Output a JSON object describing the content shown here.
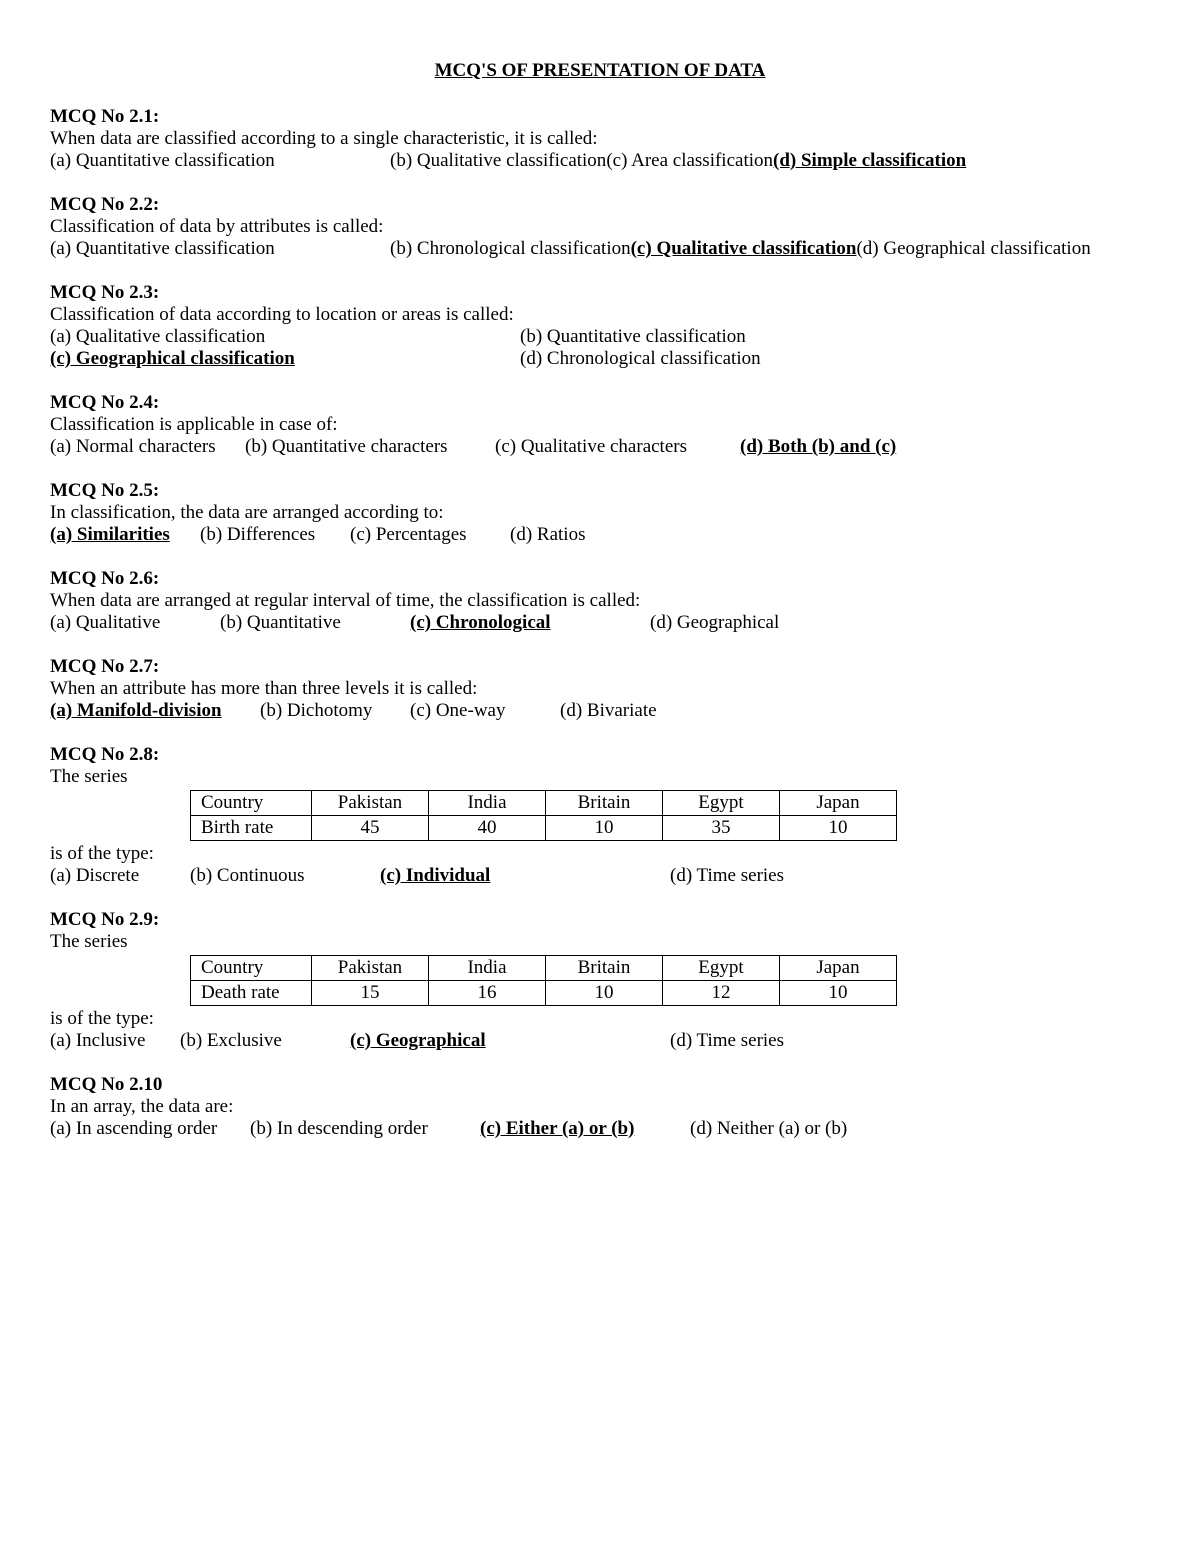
{
  "title": "MCQ'S OF PRESENTATION OF DATA",
  "mcqs": [
    {
      "no": "MCQ No 2.1:",
      "q": "When data are classified according to a single characteristic, it is called:",
      "opts": [
        "(a) Quantitative classification",
        "(b) Qualitative classification",
        "(c) Area classification",
        "(d) Simple classification"
      ],
      "answer": 3
    },
    {
      "no": "MCQ No 2.2:",
      "q": "Classification of data by attributes is called:",
      "opts": [
        "(a) Quantitative classification",
        "(b) Chronological classification",
        "(c) Qualitative classification",
        "(d) Geographical classification"
      ],
      "answer": 2
    },
    {
      "no": "MCQ No 2.3:",
      "q": "Classification of data according to location or areas is called:",
      "opts": [
        "(a) Qualitative classification",
        "(b) Quantitative classification",
        "(c) Geographical classification",
        "(d) Chronological classification"
      ],
      "answer": 2
    },
    {
      "no": "MCQ No 2.4:",
      "q": "Classification is applicable in case of:",
      "opts": [
        "(a) Normal characters",
        "(b) Quantitative characters",
        "(c) Qualitative characters",
        "(d) Both (b) and (c)"
      ],
      "answer": 3
    },
    {
      "no": "MCQ No 2.5:",
      "q": "In classification, the data are arranged according to:",
      "opts": [
        "(a) Similarities",
        "(b) Differences",
        "(c) Percentages",
        "(d) Ratios"
      ],
      "answer": 0
    },
    {
      "no": "MCQ No 2.6:",
      "q": "When data are arranged at regular interval of time, the classification is called:",
      "opts": [
        "(a) Qualitative",
        "(b) Quantitative",
        "(c) Chronological",
        "(d) Geographical"
      ],
      "answer": 2
    },
    {
      "no": "MCQ No 2.7:",
      "q": "When an attribute has more than three levels it is called:",
      "opts": [
        "(a) Manifold-division",
        "(b) Dichotomy",
        "(c) One-way",
        "(d) Bivariate"
      ],
      "answer": 0
    },
    {
      "no": "MCQ No 2.8:",
      "q_pre": "The series",
      "q_post": "is of the type:",
      "table": {
        "row1": [
          "Country",
          "Pakistan",
          "India",
          "Britain",
          "Egypt",
          "Japan"
        ],
        "row2": [
          "Birth rate",
          "45",
          "40",
          "10",
          "35",
          "10"
        ]
      },
      "opts": [
        "(a) Discrete",
        "(b) Continuous",
        "(c) Individual",
        "(d) Time series"
      ],
      "answer": 2
    },
    {
      "no": "MCQ No 2.9:",
      "q_pre": "The series",
      "q_post": "is of the type:",
      "table": {
        "row1": [
          "Country",
          "Pakistan",
          "India",
          "Britain",
          "Egypt",
          "Japan"
        ],
        "row2": [
          "Death rate",
          "15",
          "16",
          "10",
          "12",
          "10"
        ]
      },
      "opts": [
        "(a) Inclusive",
        "(b) Exclusive",
        "(c) Geographical",
        "(d) Time series"
      ],
      "answer": 2
    },
    {
      "no": "MCQ No 2.10",
      "q": "In an array, the data are:",
      "opts": [
        "(a) In ascending order",
        "(b) In descending order",
        "(c) Either (a) or (b)",
        "(d) Neither (a) or (b)"
      ],
      "answer": 2
    }
  ]
}
